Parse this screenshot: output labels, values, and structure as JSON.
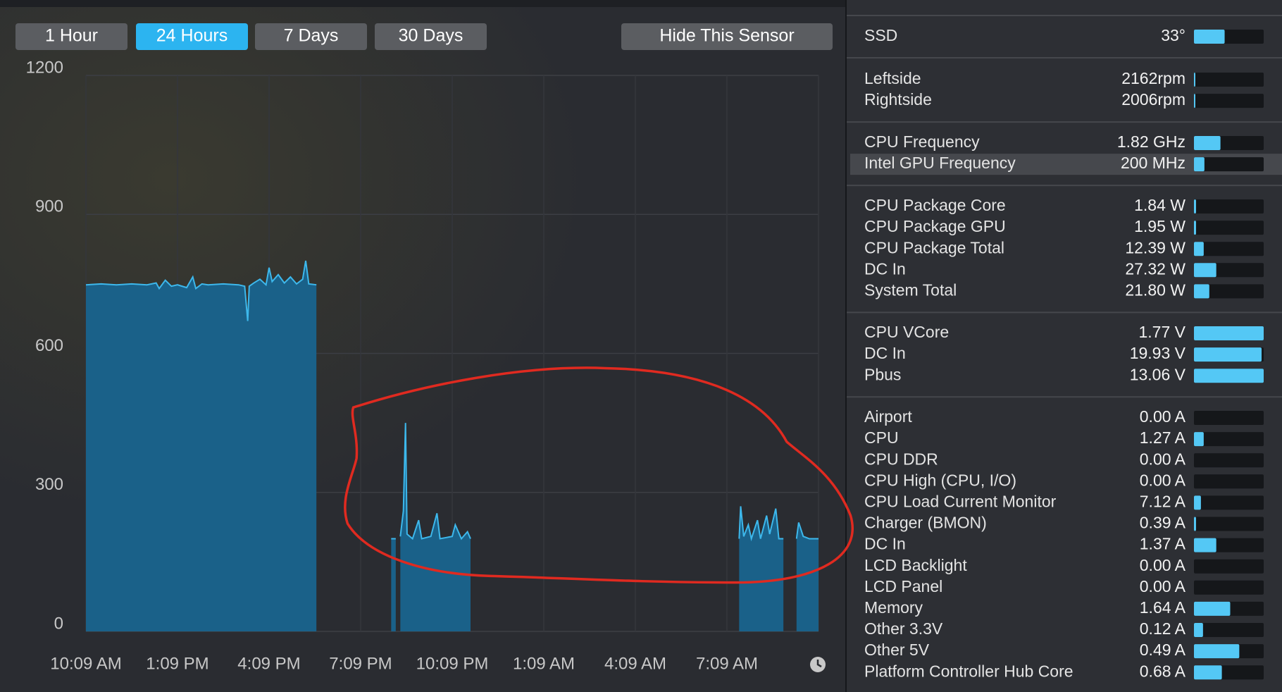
{
  "toolbar": {
    "ranges": [
      "1 Hour",
      "24 Hours",
      "7 Days",
      "30 Days"
    ],
    "selected": 1,
    "hide_button": "Hide This Sensor"
  },
  "chart_data": {
    "type": "area",
    "color": "#1a6189",
    "line_color": "#3db8ec",
    "grid": true,
    "xlim": [
      0,
      24
    ],
    "xticks": [
      {
        "value": 0,
        "label": "10:09 AM"
      },
      {
        "value": 3,
        "label": "1:09 PM"
      },
      {
        "value": 6,
        "label": "4:09 PM"
      },
      {
        "value": 9,
        "label": "7:09 PM"
      },
      {
        "value": 12,
        "label": "10:09 PM"
      },
      {
        "value": 15,
        "label": "1:09 AM"
      },
      {
        "value": 18,
        "label": "4:09 AM"
      },
      {
        "value": 21,
        "label": "7:09 AM"
      }
    ],
    "ylim": [
      0,
      1200
    ],
    "yticks": [
      0,
      300,
      600,
      900,
      1200
    ],
    "x": [
      0,
      0.5,
      1,
      1.5,
      2,
      2.3,
      2.4,
      2.6,
      2.8,
      3.0,
      3.3,
      3.5,
      3.6,
      3.8,
      4.0,
      4.5,
      5.0,
      5.2,
      5.3,
      5.35,
      5.5,
      5.7,
      5.9,
      6.0,
      6.1,
      6.3,
      6.5,
      6.7,
      6.9,
      7.1,
      7.2,
      7.3,
      7.55,
      null,
      10.0,
      10.15,
      null,
      10.3,
      10.4,
      10.47,
      10.52,
      10.7,
      10.9,
      11.0,
      11.3,
      11.5,
      11.6,
      12.0,
      12.1,
      12.3,
      12.5,
      12.6,
      null,
      21.4,
      21.45,
      21.55,
      21.7,
      21.8,
      22.0,
      22.1,
      22.3,
      22.4,
      22.6,
      22.7,
      22.85,
      null,
      23.28,
      23.35,
      23.5,
      23.7,
      24.0
    ],
    "values": [
      748,
      750,
      748,
      750,
      748,
      752,
      740,
      758,
      745,
      748,
      742,
      765,
      740,
      750,
      748,
      750,
      748,
      745,
      670,
      745,
      752,
      760,
      748,
      785,
      755,
      770,
      752,
      765,
      750,
      760,
      800,
      750,
      748,
      null,
      200,
      200,
      null,
      205,
      260,
      450,
      210,
      200,
      240,
      200,
      205,
      255,
      200,
      205,
      230,
      200,
      215,
      200,
      null,
      200,
      270,
      205,
      230,
      200,
      240,
      200,
      250,
      210,
      265,
      200,
      200,
      null,
      200,
      235,
      205,
      200,
      200
    ]
  },
  "sensors": {
    "groups": [
      [
        {
          "name": "SSD",
          "value": "33°",
          "level": 0.44
        }
      ],
      [
        {
          "name": "Leftside",
          "value": "2162rpm",
          "level": 0.02
        },
        {
          "name": "Rightside",
          "value": "2006rpm",
          "level": 0.02
        }
      ],
      [
        {
          "name": "CPU Frequency",
          "value": "1.82 GHz",
          "level": 0.38
        },
        {
          "name": "Intel GPU Frequency",
          "value": "200 MHz",
          "level": 0.15,
          "selected": true
        }
      ],
      [
        {
          "name": "CPU Package Core",
          "value": "1.84 W",
          "level": 0.03
        },
        {
          "name": "CPU Package GPU",
          "value": "1.95 W",
          "level": 0.03
        },
        {
          "name": "CPU Package Total",
          "value": "12.39 W",
          "level": 0.14
        },
        {
          "name": "DC In",
          "value": "27.32 W",
          "level": 0.32
        },
        {
          "name": "System Total",
          "value": "21.80 W",
          "level": 0.22
        }
      ],
      [
        {
          "name": "CPU VCore",
          "value": "1.77 V",
          "level": 1.0
        },
        {
          "name": "DC In",
          "value": "19.93 V",
          "level": 0.97
        },
        {
          "name": "Pbus",
          "value": "13.06 V",
          "level": 1.0
        }
      ],
      [
        {
          "name": "Airport",
          "value": "0.00 A",
          "level": 0
        },
        {
          "name": "CPU",
          "value": "1.27 A",
          "level": 0.14
        },
        {
          "name": "CPU DDR",
          "value": "0.00 A",
          "level": 0
        },
        {
          "name": "CPU High (CPU, I/O)",
          "value": "0.00 A",
          "level": 0
        },
        {
          "name": "CPU Load Current Monitor",
          "value": "7.12 A",
          "level": 0.1
        },
        {
          "name": "Charger (BMON)",
          "value": "0.39 A",
          "level": 0.03
        },
        {
          "name": "DC In",
          "value": "1.37 A",
          "level": 0.32
        },
        {
          "name": "LCD Backlight",
          "value": "0.00 A",
          "level": 0
        },
        {
          "name": "LCD Panel",
          "value": "0.00 A",
          "level": 0
        },
        {
          "name": "Memory",
          "value": "1.64 A",
          "level": 0.52
        },
        {
          "name": "Other 3.3V",
          "value": "0.12 A",
          "level": 0.13
        },
        {
          "name": "Other 5V",
          "value": "0.49 A",
          "level": 0.65
        },
        {
          "name": "Platform Controller Hub Core",
          "value": "0.68 A",
          "level": 0.4
        }
      ]
    ]
  }
}
